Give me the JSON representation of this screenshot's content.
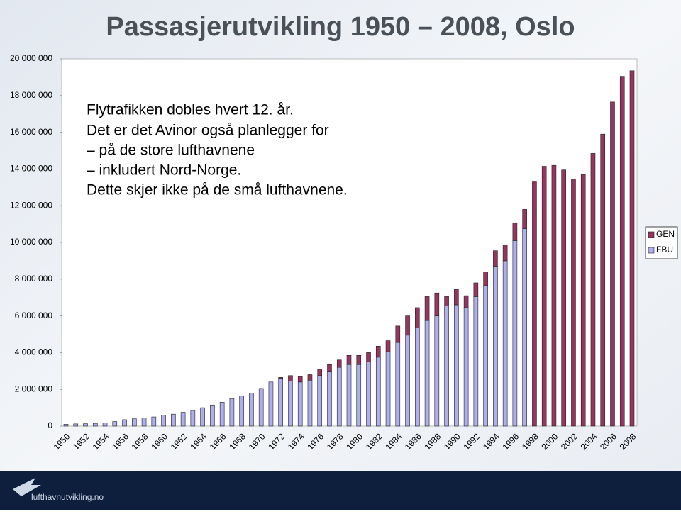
{
  "chart_data": {
    "type": "stacked-bar",
    "title": "Passasjerutvikling 1950 – 2008, Oslo",
    "annotations": [
      "Flytrafikken dobles hvert 12. år.",
      "Det er det Avinor også planlegger for",
      "– på de store lufthavnene",
      "– inkludert Nord-Norge.",
      "Dette skjer ikke på de små lufthavnene."
    ],
    "footer": "lufthavnutvikling.no",
    "categories": [
      "1950",
      null,
      "1952",
      null,
      "1954",
      null,
      "1956",
      null,
      "1958",
      null,
      "1960",
      null,
      "1962",
      null,
      "1964",
      null,
      "1966",
      null,
      "1968",
      null,
      "1970",
      null,
      "1972",
      null,
      "1974",
      null,
      "1976",
      null,
      "1978",
      null,
      "1980",
      null,
      "1982",
      null,
      "1984",
      null,
      "1986",
      null,
      "1988",
      null,
      "1990",
      null,
      "1992",
      null,
      "1994",
      null,
      "1996",
      null,
      "1998",
      null,
      "2000",
      null,
      "2002",
      null,
      "2004",
      null,
      "2006",
      null,
      "2008"
    ],
    "series": [
      {
        "name": "FBU",
        "color": "#aeaef0",
        "values": [
          100000,
          120000,
          130000,
          150000,
          180000,
          250000,
          350000,
          400000,
          450000,
          500000,
          600000,
          650000,
          750000,
          850000,
          1000000,
          1150000,
          1300000,
          1500000,
          1650000,
          1800000,
          2050000,
          2400000,
          2600000,
          2450000,
          2400000,
          2500000,
          2750000,
          2950000,
          3200000,
          3350000,
          3350000,
          3500000,
          3750000,
          4050000,
          4550000,
          4950000,
          5350000,
          5750000,
          6000000,
          6550000,
          6600000,
          6450000,
          7050000,
          7650000,
          8700000,
          9000000,
          10100000,
          10750000,
          null,
          null,
          null,
          null,
          null,
          null,
          null,
          null,
          null,
          null,
          null
        ]
      },
      {
        "name": "GEN",
        "color": "#993360",
        "values": [
          0,
          0,
          0,
          0,
          0,
          0,
          0,
          0,
          0,
          0,
          0,
          0,
          0,
          0,
          0,
          0,
          0,
          0,
          0,
          0,
          0,
          0,
          50000,
          300000,
          300000,
          300000,
          350000,
          400000,
          400000,
          500000,
          500000,
          500000,
          600000,
          600000,
          900000,
          1050000,
          1100000,
          1300000,
          1250000,
          500000,
          850000,
          650000,
          750000,
          750000,
          850000,
          850000,
          950000,
          1050000,
          13300000,
          14150000,
          14200000,
          13950000,
          13450000,
          13700000,
          14850000,
          15900000,
          17650000,
          19050000,
          19350000
        ]
      }
    ],
    "ylim": [
      0,
      20000000
    ],
    "yticks": [
      0,
      {
        "value": 2000000,
        "label": "2 000 000"
      },
      {
        "value": 4000000,
        "label": "4 000 000"
      },
      {
        "value": 6000000,
        "label": "6 000 000"
      },
      {
        "value": 8000000,
        "label": "8 000 000"
      },
      {
        "value": 10000000,
        "label": "10 000 000"
      },
      {
        "value": 12000000,
        "label": "12 000 000"
      },
      {
        "value": 14000000,
        "label": "14 000 000"
      },
      {
        "value": 16000000,
        "label": "16 000 000"
      },
      {
        "value": 18000000,
        "label": "18 000 000"
      },
      {
        "value": 20000000,
        "label": "20 000 000"
      }
    ],
    "legend": "right"
  }
}
